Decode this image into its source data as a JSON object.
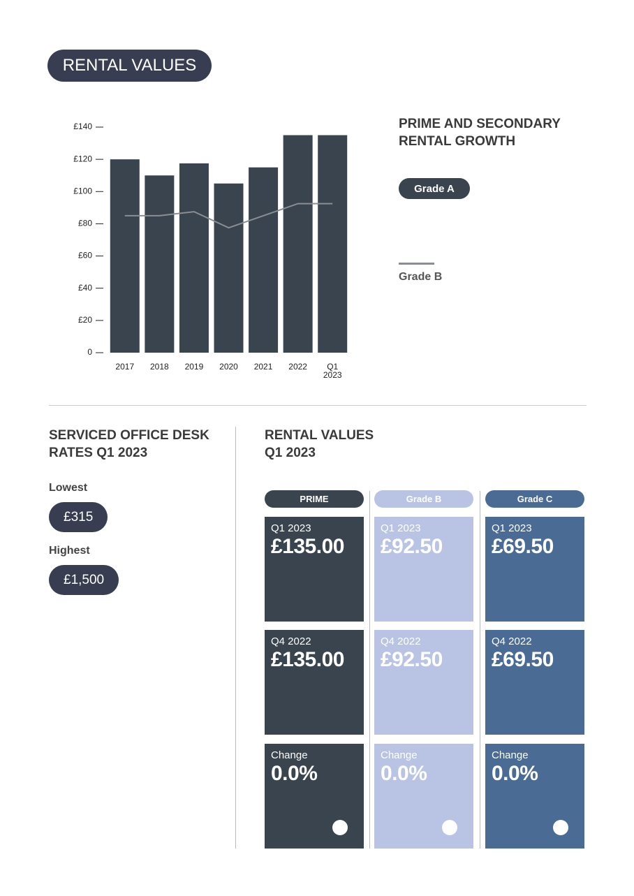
{
  "header": {
    "title": "RENTAL VALUES"
  },
  "chart_data": {
    "type": "bar",
    "legend_title": "PRIME AND SECONDARY RENTAL GROWTH",
    "categories": [
      "2017",
      "2018",
      "2019",
      "2020",
      "2021",
      "2022",
      "Q1 2023"
    ],
    "series": [
      {
        "name": "Grade A",
        "type": "bar",
        "color": "#39444e",
        "values": [
          120,
          110,
          117.5,
          105,
          115,
          135,
          135
        ]
      },
      {
        "name": "Grade B",
        "type": "line",
        "color": "#8a8e92",
        "values": [
          85,
          85,
          87.5,
          77.5,
          85,
          92.5,
          92.5
        ]
      }
    ],
    "ylim": [
      0,
      140
    ],
    "yticks": [
      0,
      {
        "value": 20,
        "label": "£20"
      },
      {
        "value": 40,
        "label": "£40"
      },
      {
        "value": 60,
        "label": "£60"
      },
      {
        "value": 80,
        "label": "£80"
      },
      {
        "value": 100,
        "label": "£100"
      },
      {
        "value": 120,
        "label": "£120"
      },
      {
        "value": 140,
        "label": "£140"
      }
    ]
  },
  "desk_rates": {
    "title": "SERVICED OFFICE DESK RATES Q1 2023",
    "items": [
      {
        "label": "Lowest",
        "value": "£315"
      },
      {
        "label": "Highest",
        "value": "£1,500"
      }
    ]
  },
  "rental_table": {
    "title": "RENTAL VALUES",
    "subtitle": "Q1 2023",
    "columns": [
      {
        "name": "PRIME",
        "color": "#39444e",
        "cells": [
          {
            "label": "Q1 2023",
            "value": "£135.00"
          },
          {
            "label": "Q4 2022",
            "value": "£135.00"
          },
          {
            "label": "Change",
            "value": "0.0%"
          }
        ]
      },
      {
        "name": "Grade B",
        "color": "#b9c4e4",
        "cells": [
          {
            "label": "Q1 2023",
            "value": "£92.50"
          },
          {
            "label": "Q4 2022",
            "value": "£92.50"
          },
          {
            "label": "Change",
            "value": "0.0%"
          }
        ]
      },
      {
        "name": "Grade C",
        "color": "#4a6b94",
        "cells": [
          {
            "label": "Q1 2023",
            "value": "£69.50"
          },
          {
            "label": "Q4 2022",
            "value": "£69.50"
          },
          {
            "label": "Change",
            "value": "0.0%"
          }
        ]
      }
    ]
  }
}
